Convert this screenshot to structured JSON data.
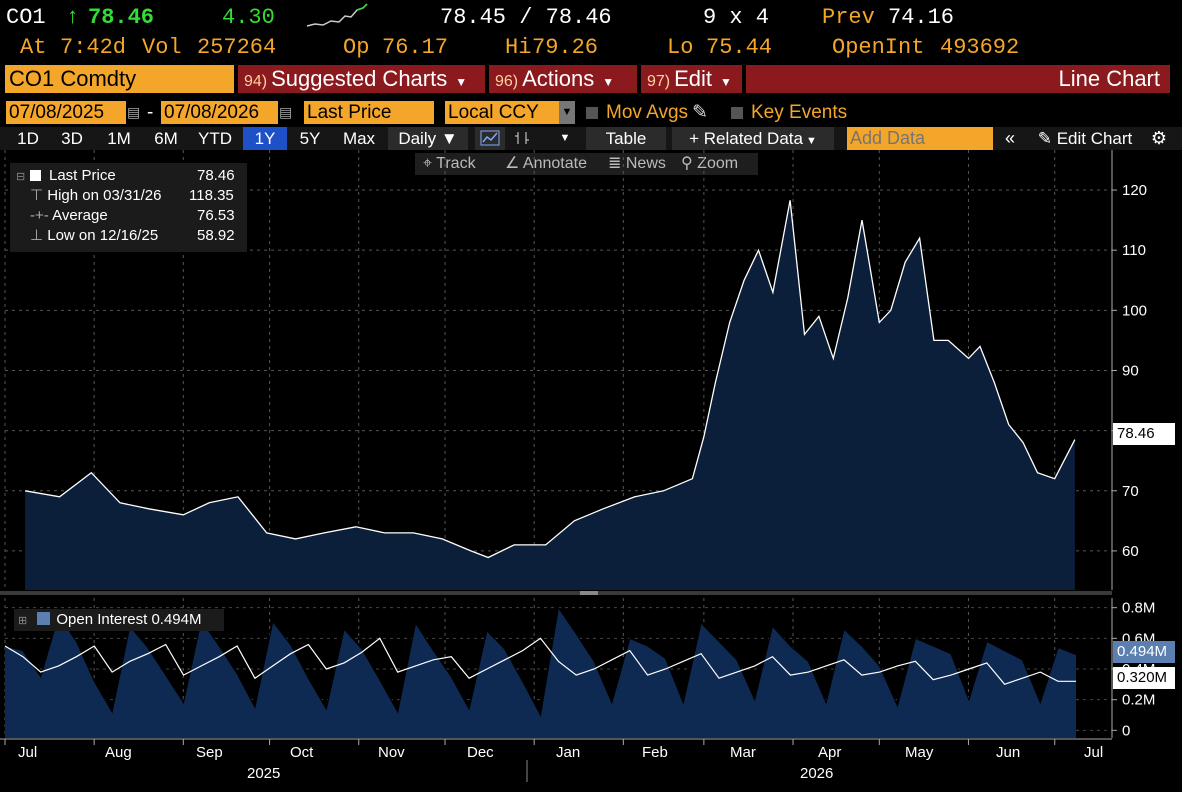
{
  "quote": {
    "ticker": "CO1",
    "arrow": "↑",
    "last": "78.46",
    "change": "4.30",
    "bid_ask": "78.45 / 78.46",
    "size": "9 x 4",
    "prev_label": "Prev",
    "prev": "74.16",
    "at_label": "At",
    "time": "7:42d",
    "vol_label": "Vol",
    "vol": "257264",
    "op_label": "Op",
    "open": "76.17",
    "hi_label": "Hi",
    "high": "79.26",
    "lo_label": "Lo",
    "low": "75.44",
    "oi_label": "OpenInt",
    "open_int": "493692"
  },
  "menu": {
    "security": "CO1 Comdty",
    "suggested_num": "94)",
    "suggested": "Suggested Charts",
    "actions_num": "96)",
    "actions": "Actions",
    "edit_num": "97)",
    "edit": "Edit",
    "chart_type": "Line Chart"
  },
  "settings": {
    "start_date": "07/08/2025",
    "dash": "-",
    "end_date": "07/08/2026",
    "field": "Last Price",
    "currency": "Local CCY",
    "mov_avgs": "Mov Avgs",
    "key_events": "Key Events"
  },
  "toolbar": {
    "periods": [
      "1D",
      "3D",
      "1M",
      "6M",
      "YTD",
      "1Y",
      "5Y",
      "Max"
    ],
    "selected_period": "1Y",
    "frequency": "Daily",
    "table": "Table",
    "related": "Related Data",
    "add_data_placeholder": "Add Data",
    "edit_chart": "Edit Chart"
  },
  "tools": {
    "track": "Track",
    "annotate": "Annotate",
    "news": "News",
    "zoom": "Zoom"
  },
  "legend": {
    "last_label": "Last Price",
    "last_value": "78.46",
    "high_label": "High on 03/31/26",
    "high_value": "118.35",
    "avg_label": "Average",
    "avg_value": "76.53",
    "low_label": "Low on 12/16/25",
    "low_value": "58.92"
  },
  "oi_legend": {
    "label": "Open Interest 0.494M"
  },
  "tags": {
    "price": "78.46",
    "oi": "0.494M",
    "oi_line": "0.320M"
  },
  "colors": {
    "amber": "#f4a62a",
    "menu_red": "#8b1a1f",
    "selected_blue": "#1e50c8",
    "area_fill": "#0b1e3a",
    "oi_fill": "#0f2a52",
    "up_green": "#33dd33"
  },
  "chart_data": [
    {
      "type": "area",
      "series": [
        {
          "name": "Last Price"
        }
      ],
      "ylim": [
        53.5,
        123
      ],
      "yticks": [
        60,
        70,
        80,
        90,
        100,
        110,
        120
      ],
      "x": [
        "2025-07-08",
        "2025-07-20",
        "2025-07-31",
        "2025-08-10",
        "2025-08-20",
        "2025-09-01",
        "2025-09-10",
        "2025-09-20",
        "2025-09-30",
        "2025-10-10",
        "2025-10-20",
        "2025-10-31",
        "2025-11-10",
        "2025-11-20",
        "2025-11-30",
        "2025-12-10",
        "2025-12-16",
        "2025-12-25",
        "2026-01-05",
        "2026-01-15",
        "2026-01-25",
        "2026-02-05",
        "2026-02-15",
        "2026-02-25",
        "2026-03-01",
        "2026-03-05",
        "2026-03-10",
        "2026-03-15",
        "2026-03-20",
        "2026-03-25",
        "2026-03-31",
        "2026-04-05",
        "2026-04-10",
        "2026-04-15",
        "2026-04-20",
        "2026-04-25",
        "2026-05-01",
        "2026-05-05",
        "2026-05-10",
        "2026-05-15",
        "2026-05-20",
        "2026-05-25",
        "2026-06-01",
        "2026-06-05",
        "2026-06-10",
        "2026-06-15",
        "2026-06-20",
        "2026-06-25",
        "2026-07-01",
        "2026-07-08"
      ],
      "values": [
        70,
        69,
        73,
        68,
        67,
        66,
        68,
        69,
        63,
        62,
        63,
        64,
        63,
        63,
        62,
        60,
        58.9,
        61,
        61,
        65,
        67,
        69,
        70,
        72,
        79,
        88,
        98,
        105,
        110,
        103,
        118.3,
        96,
        99,
        92,
        102,
        115,
        98,
        100,
        108,
        112,
        95,
        95,
        92,
        94,
        88,
        81,
        78,
        73,
        72,
        78.5
      ],
      "xtick_labels": [
        "Jul",
        "Aug",
        "Sep",
        "Oct",
        "Nov",
        "Dec",
        "Jan",
        "Feb",
        "Mar",
        "Apr",
        "May",
        "Jun",
        "Jul"
      ],
      "year_labels": [
        "2025",
        "2026"
      ]
    },
    {
      "type": "area",
      "series": [
        {
          "name": "Open Interest"
        }
      ],
      "ylim": [
        -0.05,
        0.85
      ],
      "yticks": [
        0,
        0.2,
        0.4,
        0.6,
        0.8
      ],
      "ytick_labels": [
        "0",
        "0.2M",
        "0.4M",
        "0.6M",
        "0.8M"
      ],
      "oi_values": [
        0.55,
        0.52,
        0.35,
        0.75,
        0.58,
        0.32,
        0.12,
        0.68,
        0.54,
        0.36,
        0.18,
        0.72,
        0.55,
        0.37,
        0.15,
        0.71,
        0.56,
        0.34,
        0.14,
        0.66,
        0.53,
        0.33,
        0.12,
        0.7,
        0.52,
        0.35,
        0.14,
        0.65,
        0.53,
        0.32,
        0.1,
        0.8,
        0.63,
        0.45,
        0.18,
        0.6,
        0.55,
        0.47,
        0.18,
        0.7,
        0.58,
        0.46,
        0.2,
        0.68,
        0.55,
        0.45,
        0.18,
        0.66,
        0.55,
        0.42,
        0.16,
        0.6,
        0.55,
        0.5,
        0.2,
        0.58,
        0.52,
        0.46,
        0.18,
        0.54,
        0.494
      ],
      "line_values": [
        0.55,
        0.48,
        0.38,
        0.42,
        0.48,
        0.55,
        0.38,
        0.45,
        0.5,
        0.56,
        0.36,
        0.42,
        0.48,
        0.55,
        0.34,
        0.42,
        0.5,
        0.56,
        0.4,
        0.44,
        0.51,
        0.6,
        0.38,
        0.42,
        0.46,
        0.48,
        0.34,
        0.4,
        0.46,
        0.52,
        0.6,
        0.45,
        0.36,
        0.4,
        0.46,
        0.52,
        0.36,
        0.4,
        0.45,
        0.5,
        0.34,
        0.38,
        0.42,
        0.48,
        0.36,
        0.38,
        0.42,
        0.46,
        0.36,
        0.38,
        0.42,
        0.45,
        0.33,
        0.36,
        0.4,
        0.44,
        0.3,
        0.34,
        0.38,
        0.32,
        0.32
      ]
    }
  ]
}
